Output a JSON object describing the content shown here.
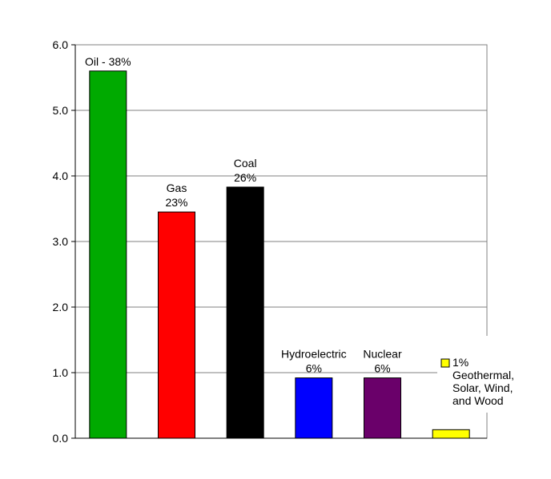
{
  "chart_data": {
    "type": "bar",
    "title": "",
    "xlabel": "",
    "ylabel": "",
    "ylim": [
      0,
      6
    ],
    "yticks": [
      "0.0",
      "1.0",
      "2.0",
      "3.0",
      "4.0",
      "5.0",
      "6.0"
    ],
    "grid": true,
    "categories": [
      "Oil",
      "Gas",
      "Coal",
      "Hydroelectric",
      "Nuclear",
      "Geothermal, Solar, Wind, and Wood"
    ],
    "values": [
      5.6,
      3.45,
      3.83,
      0.92,
      0.92,
      0.13
    ],
    "colors": [
      "#00aa00",
      "#ff0000",
      "#000000",
      "#0000ff",
      "#6a006a",
      "#ffff00"
    ],
    "data_labels": [
      [
        "Oil - 38%"
      ],
      [
        "Gas",
        "23%"
      ],
      [
        "Coal",
        "26%"
      ],
      [
        "Hydroelectric",
        "6%"
      ],
      [
        "Nuclear",
        "6%"
      ],
      [
        "1%",
        "Geothermal,",
        "Solar, Wind,",
        "and Wood"
      ]
    ]
  }
}
